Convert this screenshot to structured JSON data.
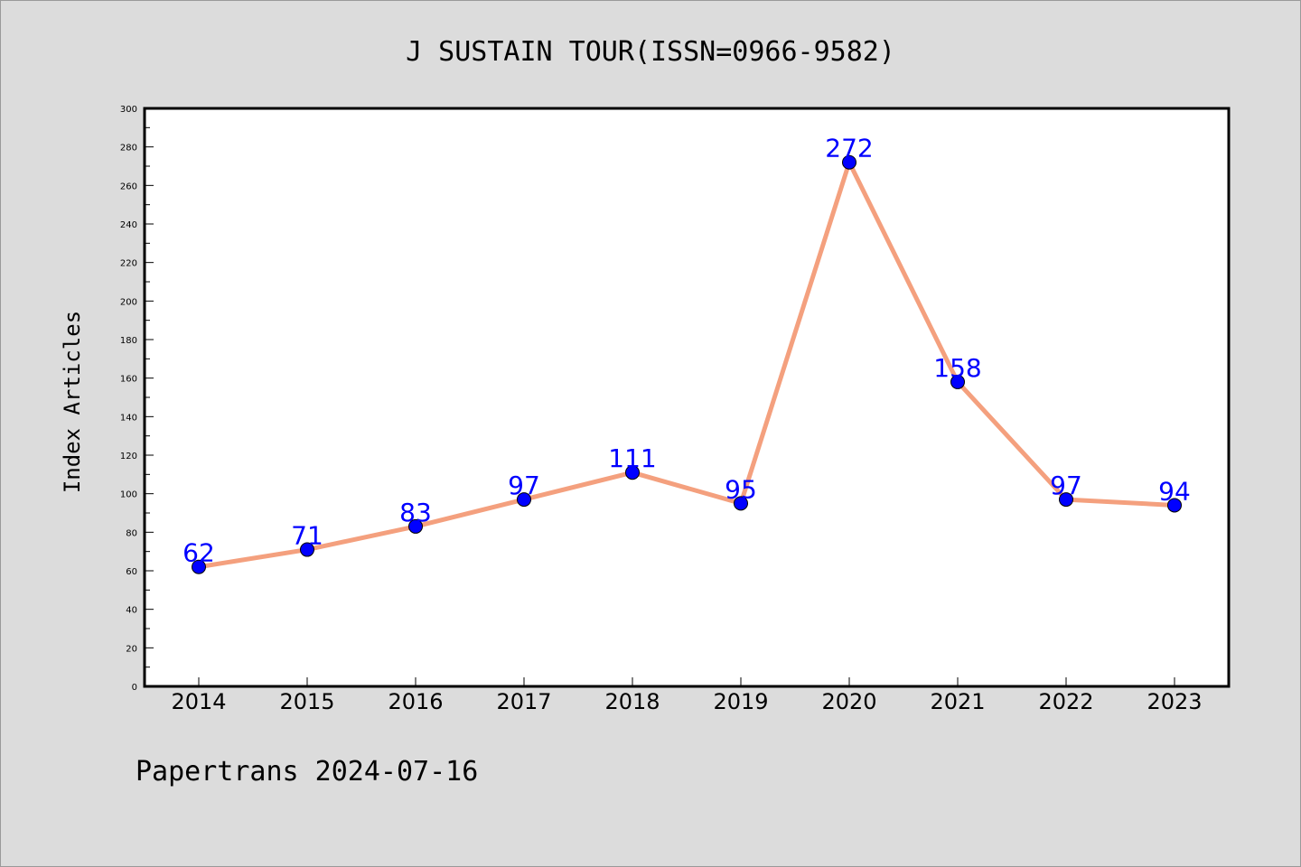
{
  "chart_data": {
    "type": "line",
    "title": "J SUSTAIN TOUR(ISSN=0966-9582)",
    "xlabel": "",
    "ylabel": "Index Articles",
    "categories": [
      "2014",
      "2015",
      "2016",
      "2017",
      "2018",
      "2019",
      "2020",
      "2021",
      "2022",
      "2023"
    ],
    "values": [
      62,
      71,
      83,
      97,
      111,
      95,
      272,
      158,
      97,
      94
    ],
    "ylim": [
      0,
      300
    ],
    "y_ticks": [
      "0",
      "20",
      "40",
      "60",
      "80",
      "100",
      "120",
      "140",
      "160",
      "180",
      "200",
      "220",
      "240",
      "260",
      "280",
      "300"
    ],
    "grid": false,
    "legend": "none",
    "line_color": "#f4a07e",
    "marker_color": "#0000ff",
    "label_color": "#0000ff"
  },
  "footer": {
    "text": "Papertrans 2024-07-16"
  }
}
